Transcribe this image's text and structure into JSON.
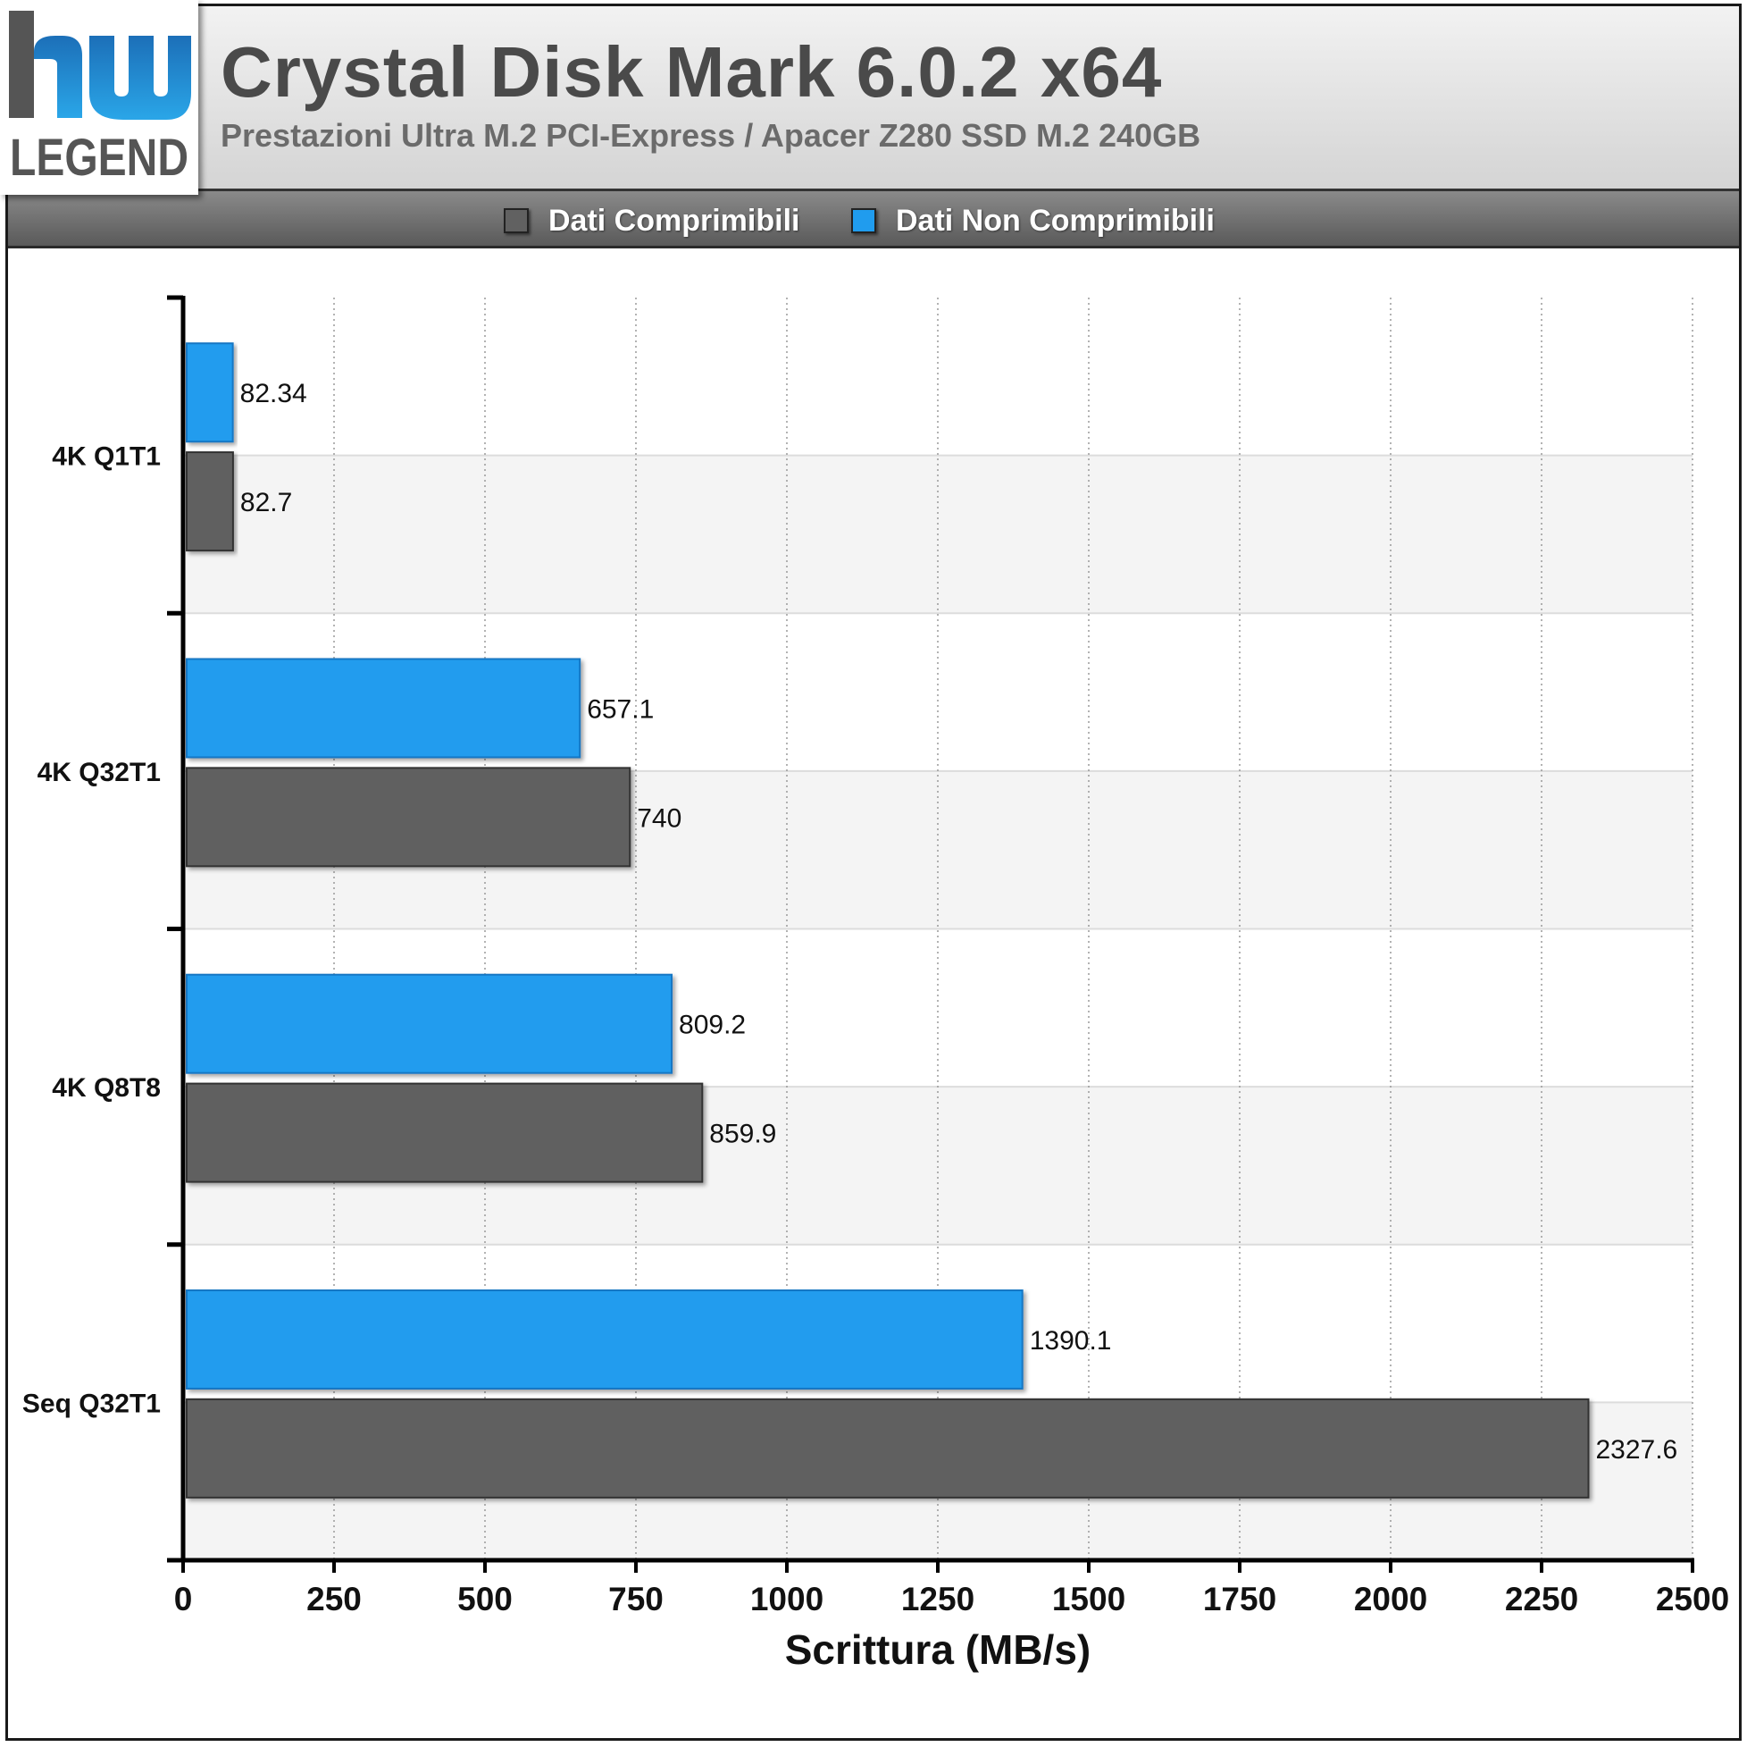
{
  "header": {
    "title": "Crystal Disk Mark 6.0.2 x64",
    "subtitle": "Prestazioni Ultra M.2 PCI-Express / Apacer Z280 SSD M.2 240GB",
    "logo_text": "hw LEGEND"
  },
  "colors": {
    "compressible": "#616161",
    "non_compressible": "#209cee",
    "band": "#f4f4f4"
  },
  "chart_data": {
    "type": "bar",
    "orientation": "horizontal",
    "categories": [
      "4K Q1T1",
      "4K Q32T1",
      "4K Q8T8",
      "Seq Q32T1"
    ],
    "series": [
      {
        "name": "Dati Comprimibili",
        "values": [
          82.7,
          740,
          859.9,
          2327.6
        ]
      },
      {
        "name": "Dati Non Comprimibili",
        "values": [
          82.34,
          657.1,
          809.2,
          1390.1
        ]
      }
    ],
    "data_labels": {
      "Dati Comprimibili": [
        "82.7",
        "740",
        "859.9",
        "2327.6"
      ],
      "Dati Non Comprimibili": [
        "82.34",
        "657.1",
        "809.2",
        "1390.1"
      ]
    },
    "xlabel": "Scrittura (MB/s)",
    "ylabel": "",
    "xlim": [
      0,
      2500
    ],
    "xticks": [
      "0",
      "250",
      "500",
      "750",
      "1000",
      "1250",
      "1500",
      "1750",
      "2000",
      "2250",
      "2500"
    ],
    "grid": true,
    "legend_position": "top"
  }
}
